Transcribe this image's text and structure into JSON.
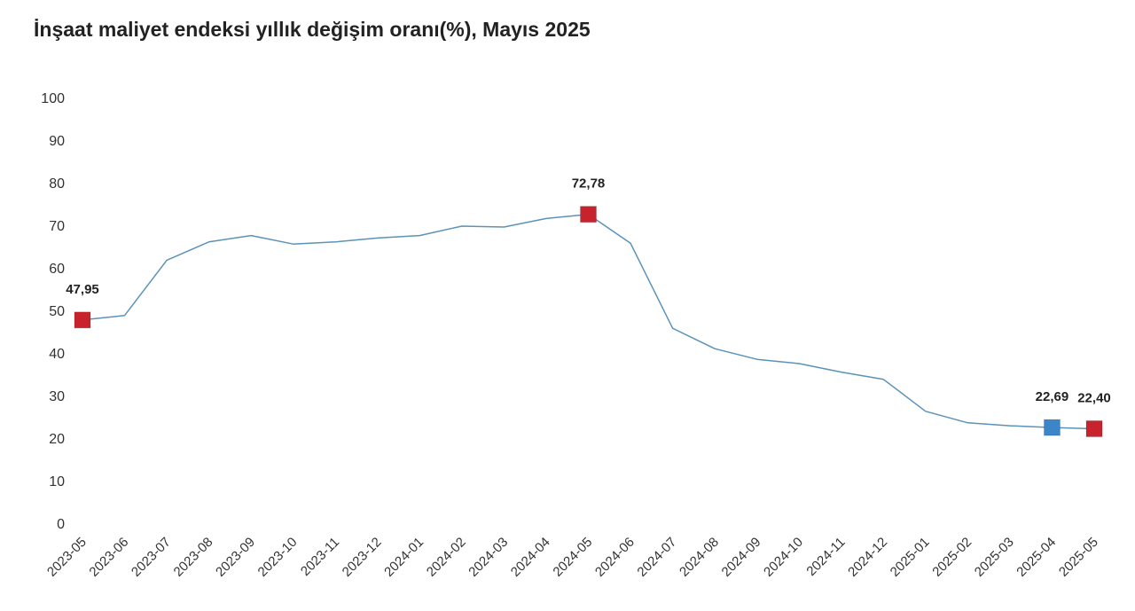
{
  "chart_data": {
    "type": "line",
    "title": "İnşaat maliyet endeksi yıllık değişim oranı(%), Mayıs 2025",
    "xlabel": "",
    "ylabel": "",
    "ylim": [
      0,
      100
    ],
    "yticks": [
      "0",
      "10",
      "20",
      "30",
      "40",
      "50",
      "60",
      "70",
      "80",
      "90",
      "100"
    ],
    "grid": false,
    "legend": "none",
    "categories": [
      "2023-05",
      "2023-06",
      "2023-07",
      "2023-08",
      "2023-09",
      "2023-10",
      "2023-11",
      "2023-12",
      "2024-01",
      "2024-02",
      "2024-03",
      "2024-04",
      "2024-05",
      "2024-06",
      "2024-07",
      "2024-08",
      "2024-09",
      "2024-10",
      "2024-11",
      "2024-12",
      "2025-01",
      "2025-02",
      "2025-03",
      "2025-04",
      "2025-05"
    ],
    "series": [
      {
        "values": [
          47.95,
          49.0,
          62.0,
          66.3,
          67.8,
          65.8,
          66.3,
          67.2,
          67.8,
          70.0,
          69.8,
          71.8,
          72.78,
          66.0,
          46.0,
          41.2,
          38.7,
          37.7,
          35.7,
          34.0,
          26.5,
          23.8,
          23.1,
          22.69,
          22.4
        ],
        "color": "#5b92b8"
      }
    ],
    "highlights": [
      {
        "index": 0,
        "label": "47,95",
        "color": "#c8232c"
      },
      {
        "index": 12,
        "label": "72,78",
        "color": "#c8232c"
      },
      {
        "index": 23,
        "label": "22,69",
        "color": "#3c85c9"
      },
      {
        "index": 24,
        "label": "22,40",
        "color": "#c8232c"
      }
    ]
  }
}
